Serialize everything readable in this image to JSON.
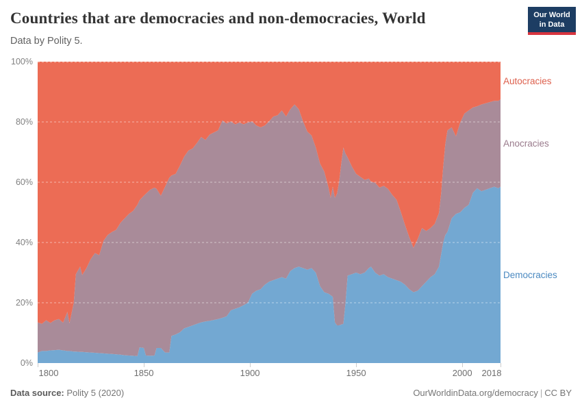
{
  "header": {
    "title": "Countries that are democracies and non-democracies, World",
    "subtitle": "Data by Polity 5.",
    "logo": {
      "line1": "Our World",
      "line2": "in Data",
      "bg_color": "#1d3d63",
      "stripe_color": "#d8353f"
    }
  },
  "footer": {
    "source_label": "Data source:",
    "source_value": "Polity 5 (2020)",
    "link_text": "OurWorldinData.org/democracy",
    "separator": "|",
    "license": "CC BY"
  },
  "colors": {
    "background": "#ffffff",
    "title_text": "#333333",
    "subtitle_text": "#616161",
    "axis_text": "#6e6e6e",
    "grid_dash": "#ffffff"
  },
  "chart_data": {
    "type": "area",
    "stacked": true,
    "unit": "% of countries",
    "title": "Countries that are democracies and non-democracies, World",
    "subtitle": "Data by Polity 5.",
    "xlabel": "",
    "ylabel": "",
    "xlim": [
      1800,
      2018
    ],
    "ylim": [
      0,
      100
    ],
    "grid": "dashed horizontal at 20% steps",
    "legend_position": "right margin, colored labels",
    "x_ticks": [
      1800,
      1850,
      1900,
      1950,
      2000,
      2018
    ],
    "y_ticks": [
      "0%",
      "20%",
      "40%",
      "60%",
      "80%",
      "100%"
    ],
    "x": [
      1800,
      1802,
      1804,
      1806,
      1808,
      1810,
      1812,
      1814,
      1815,
      1817,
      1818,
      1820,
      1821,
      1823,
      1825,
      1827,
      1829,
      1831,
      1833,
      1835,
      1837,
      1839,
      1841,
      1843,
      1845,
      1847,
      1848,
      1850,
      1851,
      1853,
      1855,
      1856,
      1858,
      1860,
      1862,
      1863,
      1865,
      1867,
      1869,
      1871,
      1873,
      1875,
      1877,
      1879,
      1881,
      1883,
      1885,
      1887,
      1889,
      1891,
      1893,
      1895,
      1897,
      1899,
      1901,
      1903,
      1905,
      1907,
      1909,
      1911,
      1913,
      1915,
      1917,
      1919,
      1921,
      1923,
      1925,
      1927,
      1929,
      1931,
      1933,
      1935,
      1937,
      1938,
      1939,
      1940,
      1941,
      1942,
      1943,
      1944,
      1945,
      1946,
      1948,
      1950,
      1952,
      1954,
      1956,
      1957,
      1959,
      1961,
      1963,
      1965,
      1967,
      1969,
      1971,
      1973,
      1975,
      1977,
      1979,
      1981,
      1983,
      1985,
      1987,
      1989,
      1990,
      1991,
      1992,
      1993,
      1995,
      1997,
      1999,
      2001,
      2003,
      2005,
      2007,
      2009,
      2011,
      2013,
      2015,
      2017,
      2018
    ],
    "series": [
      {
        "name": "Democracies",
        "color": "#73a8d2",
        "label_color": "#4a89c0",
        "values": [
          3.5,
          4.0,
          4.0,
          4.2,
          4.3,
          4.4,
          4.2,
          4.0,
          4.0,
          3.8,
          3.8,
          3.7,
          3.7,
          3.6,
          3.5,
          3.4,
          3.3,
          3.2,
          3.1,
          3.0,
          2.9,
          2.8,
          2.6,
          2.5,
          2.4,
          2.3,
          5.2,
          5.0,
          2.5,
          2.4,
          2.5,
          5.0,
          5.0,
          3.5,
          3.5,
          9.0,
          9.5,
          10.2,
          11.5,
          12.0,
          12.5,
          13.0,
          13.5,
          13.8,
          14.0,
          14.3,
          14.6,
          15.0,
          15.5,
          17.5,
          18.0,
          18.5,
          19.2,
          20.0,
          23.0,
          24.0,
          24.5,
          26.0,
          27.0,
          27.5,
          28.0,
          28.5,
          28.0,
          30.5,
          31.5,
          32.0,
          31.5,
          31.0,
          31.5,
          30.0,
          25.5,
          23.5,
          23.0,
          22.5,
          22.0,
          13.5,
          12.5,
          12.5,
          12.8,
          13.0,
          20.0,
          29.0,
          29.5,
          30.0,
          29.5,
          30.0,
          31.5,
          32.0,
          30.0,
          29.0,
          29.5,
          28.5,
          28.0,
          27.5,
          27.0,
          26.0,
          24.5,
          23.5,
          24.0,
          25.5,
          27.0,
          28.5,
          29.5,
          32.0,
          36.0,
          40.0,
          42.5,
          43.5,
          48.0,
          49.5,
          50.0,
          51.5,
          52.5,
          56.5,
          58.0,
          57.0,
          57.5,
          58.0,
          58.5,
          58.0,
          58.5
        ]
      },
      {
        "name": "Anocracies",
        "color": "#a98b99",
        "label_color": "#9a7b8c",
        "values": [
          10.0,
          9.0,
          10.2,
          9.1,
          9.9,
          10.2,
          9.2,
          13.0,
          9.2,
          16.2,
          25.7,
          28.3,
          25.5,
          27.9,
          31.0,
          33.1,
          32.5,
          37.3,
          39.4,
          40.5,
          41.3,
          43.7,
          45.4,
          47.0,
          48.1,
          50.2,
          48.8,
          50.5,
          53.7,
          55.1,
          55.7,
          52.8,
          50.5,
          55.0,
          58.0,
          53.2,
          53.3,
          55.3,
          57.0,
          58.5,
          58.7,
          60.0,
          61.5,
          60.2,
          61.8,
          62.2,
          62.6,
          65.5,
          64.0,
          62.7,
          61.2,
          61.3,
          60.0,
          59.8,
          57.2,
          54.8,
          53.7,
          52.8,
          53.2,
          54.3,
          54.2,
          55.3,
          53.8,
          53.7,
          54.3,
          52.2,
          48.7,
          45.8,
          44.0,
          41.5,
          40.7,
          40.0,
          35.2,
          32.3,
          36.5,
          41.3,
          43.7,
          47.7,
          53.4,
          58.5,
          49.5,
          39.2,
          35.7,
          32.8,
          32.3,
          30.8,
          29.7,
          28.2,
          29.8,
          29.2,
          29.3,
          29.3,
          27.8,
          26.7,
          23.2,
          19.8,
          17.3,
          14.7,
          17.2,
          19.3,
          16.8,
          16.3,
          16.7,
          17.8,
          20.2,
          25.2,
          30.3,
          33.7,
          30.2,
          25.7,
          29.8,
          31.3,
          31.3,
          28.3,
          27.2,
          28.8,
          28.7,
          28.6,
          28.5,
          29.0,
          29.0
        ]
      },
      {
        "name": "Autocracies",
        "color": "#ec6c55",
        "label_color": "#dd5f4c",
        "values": [
          86.5,
          87.0,
          85.8,
          86.7,
          85.8,
          85.4,
          86.6,
          83.0,
          86.8,
          80.0,
          70.5,
          68.0,
          70.8,
          68.5,
          65.5,
          63.5,
          64.2,
          59.5,
          57.5,
          56.5,
          55.8,
          53.5,
          52.0,
          50.5,
          49.5,
          47.5,
          46.0,
          44.5,
          43.8,
          42.5,
          41.8,
          42.2,
          44.5,
          41.5,
          38.5,
          37.8,
          37.2,
          34.5,
          31.5,
          29.5,
          28.8,
          27.0,
          25.0,
          26.0,
          24.2,
          23.5,
          22.8,
          19.5,
          20.5,
          19.8,
          20.8,
          20.2,
          20.8,
          20.2,
          19.8,
          21.2,
          21.8,
          21.2,
          19.8,
          18.2,
          17.8,
          16.2,
          18.2,
          15.8,
          14.2,
          15.8,
          19.8,
          23.2,
          24.5,
          28.5,
          33.8,
          36.5,
          41.8,
          45.2,
          41.5,
          45.2,
          43.8,
          39.8,
          33.8,
          28.5,
          30.5,
          31.8,
          34.8,
          37.2,
          38.2,
          39.2,
          38.8,
          39.8,
          40.2,
          41.8,
          41.2,
          42.2,
          44.2,
          45.8,
          49.8,
          54.2,
          58.2,
          61.8,
          58.8,
          55.2,
          56.2,
          55.2,
          53.8,
          50.2,
          43.8,
          34.8,
          27.2,
          22.8,
          21.8,
          24.8,
          20.2,
          17.2,
          16.2,
          15.2,
          14.8,
          14.2,
          13.8,
          13.4,
          13.0,
          13.0,
          12.5
        ]
      }
    ]
  }
}
